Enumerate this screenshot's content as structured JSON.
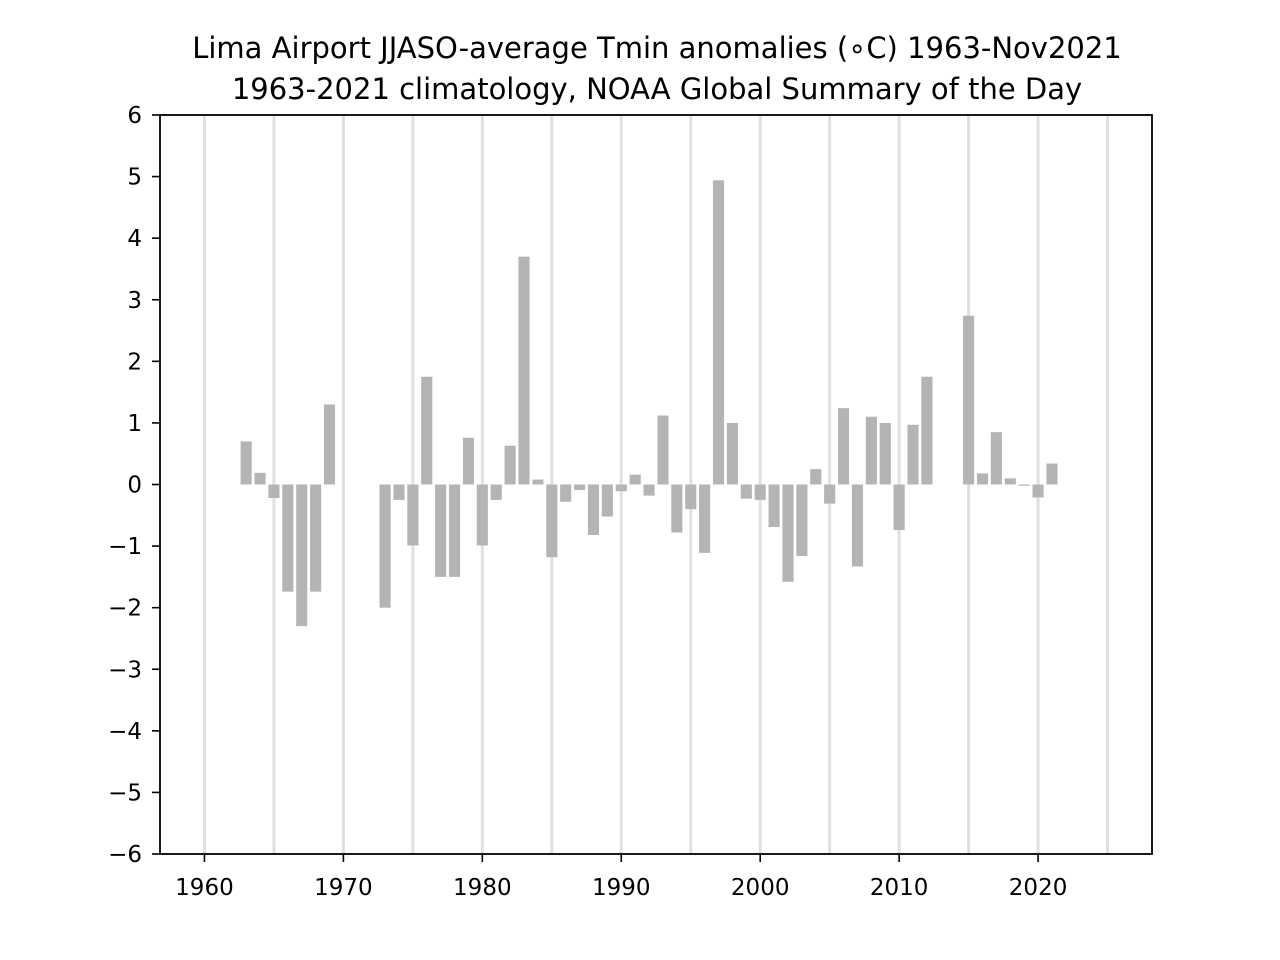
{
  "chart_data": {
    "type": "bar",
    "title": "Lima Airport JJASO-average Tmin anomalies (∘C) 1963-Nov2021",
    "subtitle": "1963-2021 climatology, NOAA Global Summary of the Day",
    "xlabel": "",
    "ylabel": "",
    "xlim": [
      1956.8,
      2028.2
    ],
    "ylim": [
      -6,
      6
    ],
    "x_ticks": [
      1960,
      1970,
      1980,
      1990,
      2000,
      2010,
      2020
    ],
    "x_tick_labels": [
      "1960",
      "1970",
      "1980",
      "1990",
      "2000",
      "2010",
      "2020"
    ],
    "y_ticks": [
      -6,
      -5,
      -4,
      -3,
      -2,
      -1,
      0,
      1,
      2,
      3,
      4,
      5,
      6
    ],
    "y_tick_labels": [
      "−6",
      "−5",
      "−4",
      "−3",
      "−2",
      "−1",
      "0",
      "1",
      "2",
      "3",
      "4",
      "5",
      "6"
    ],
    "grid_vertical_lines": [
      1960,
      1965,
      1970,
      1975,
      1980,
      1985,
      1990,
      1995,
      2000,
      2005,
      2010,
      2015,
      2020,
      2025
    ],
    "bar_color": "#b4b4b4",
    "grid_color": "#e0e0e0",
    "x": [
      1963,
      1964,
      1965,
      1966,
      1967,
      1968,
      1969,
      1973,
      1974,
      1975,
      1976,
      1977,
      1978,
      1979,
      1980,
      1981,
      1982,
      1983,
      1984,
      1985,
      1986,
      1987,
      1988,
      1989,
      1990,
      1991,
      1992,
      1993,
      1994,
      1995,
      1996,
      1997,
      1998,
      1999,
      2000,
      2001,
      2002,
      2003,
      2004,
      2005,
      2006,
      2007,
      2008,
      2009,
      2010,
      2011,
      2012,
      2015,
      2016,
      2017,
      2018,
      2019,
      2020,
      2021
    ],
    "values": [
      0.7,
      0.19,
      -0.22,
      -1.74,
      -2.3,
      -1.74,
      1.3,
      -2.0,
      -0.25,
      -0.99,
      1.75,
      -1.5,
      -1.5,
      0.76,
      -0.99,
      -0.25,
      0.63,
      3.7,
      0.08,
      -1.18,
      -0.28,
      -0.09,
      -0.82,
      -0.52,
      -0.11,
      0.16,
      -0.18,
      1.12,
      -0.78,
      -0.4,
      -1.11,
      4.94,
      1.0,
      -0.23,
      -0.25,
      -0.69,
      -1.58,
      -1.16,
      0.25,
      -0.31,
      1.24,
      -1.33,
      1.1,
      1.0,
      -0.74,
      0.97,
      1.75,
      2.74,
      0.18,
      0.85,
      0.1,
      -0.02,
      -0.21,
      0.34
    ]
  }
}
